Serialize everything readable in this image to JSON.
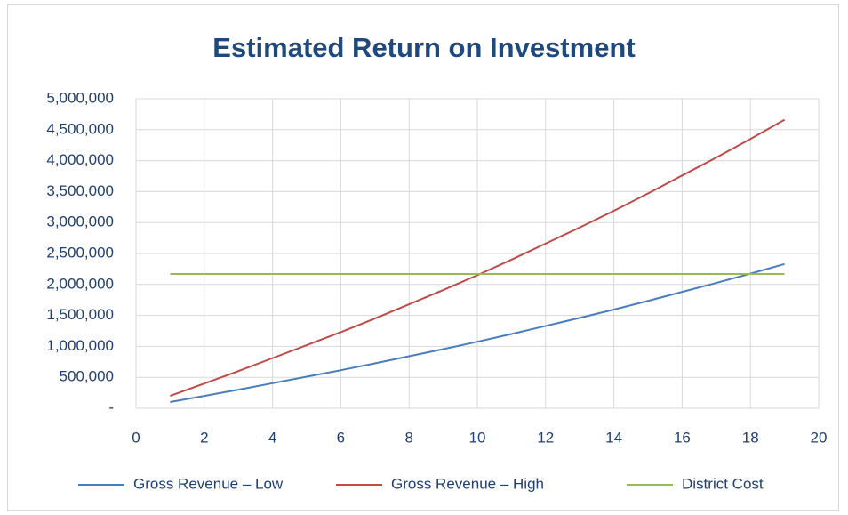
{
  "chart_data": {
    "type": "line",
    "title": "Estimated Return on Investment",
    "x": [
      1,
      2,
      3,
      4,
      5,
      6,
      7,
      8,
      9,
      10,
      11,
      12,
      13,
      14,
      15,
      16,
      17,
      18,
      19
    ],
    "series": [
      {
        "name": "Gross Revenue – Low",
        "color": "#4a7ebb",
        "values": [
          100000,
          200000,
          300000,
          405000,
          510000,
          615000,
          725000,
          840000,
          955000,
          1075000,
          1200000,
          1330000,
          1460000,
          1595000,
          1735000,
          1880000,
          2025000,
          2175000,
          2330000
        ]
      },
      {
        "name": "Gross Revenue – High",
        "color": "#be4b48",
        "values": [
          200000,
          400000,
          600000,
          810000,
          1020000,
          1230000,
          1450000,
          1680000,
          1910000,
          2150000,
          2400000,
          2660000,
          2920000,
          3190000,
          3470000,
          3760000,
          4050000,
          4350000,
          4660000
        ]
      },
      {
        "name": "District Cost",
        "color": "#98b954",
        "values": [
          2170000,
          2170000,
          2170000,
          2170000,
          2170000,
          2170000,
          2170000,
          2170000,
          2170000,
          2170000,
          2170000,
          2170000,
          2170000,
          2170000,
          2170000,
          2170000,
          2170000,
          2170000,
          2170000
        ]
      }
    ],
    "xlim": [
      0,
      20
    ],
    "xticks": [
      0,
      2,
      4,
      6,
      8,
      10,
      12,
      14,
      16,
      18,
      20
    ],
    "ylim": [
      0,
      5000000
    ],
    "yticks": [
      {
        "value": 0,
        "label": "-"
      },
      {
        "value": 500000,
        "label": "500,000"
      },
      {
        "value": 1000000,
        "label": "1,000,000"
      },
      {
        "value": 1500000,
        "label": "1,500,000"
      },
      {
        "value": 2000000,
        "label": "2,000,000"
      },
      {
        "value": 2500000,
        "label": "2,500,000"
      },
      {
        "value": 3000000,
        "label": "3,000,000"
      },
      {
        "value": 3500000,
        "label": "3,500,000"
      },
      {
        "value": 4000000,
        "label": "4,000,000"
      },
      {
        "value": 4500000,
        "label": "4,500,000"
      },
      {
        "value": 5000000,
        "label": "5,000,000"
      }
    ],
    "grid": true,
    "legend": "bottom"
  }
}
